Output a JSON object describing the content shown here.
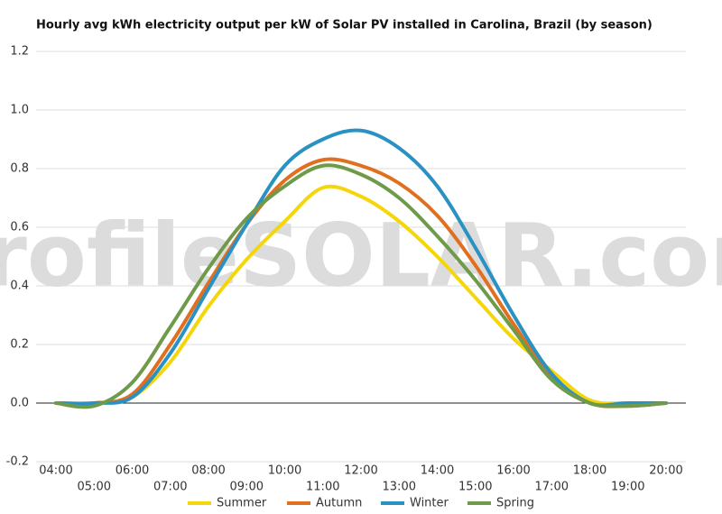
{
  "chart_data": {
    "type": "line",
    "title": "Hourly avg kWh electricity output per kW of Solar PV installed in Carolina, Brazil (by season)",
    "watermark": "profileSOLAR.com",
    "categories": [
      "04:00",
      "05:00",
      "06:00",
      "07:00",
      "08:00",
      "09:00",
      "10:00",
      "11:00",
      "12:00",
      "13:00",
      "14:00",
      "15:00",
      "16:00",
      "17:00",
      "18:00",
      "19:00",
      "20:00"
    ],
    "series": [
      {
        "name": "Summer",
        "color": "#f5d60a",
        "values": [
          0,
          0,
          0.02,
          0.14,
          0.33,
          0.49,
          0.62,
          0.735,
          0.705,
          0.62,
          0.5,
          0.36,
          0.22,
          0.11,
          0.01,
          0,
          0
        ]
      },
      {
        "name": "Autumn",
        "color": "#e07020",
        "values": [
          0,
          0,
          0.03,
          0.2,
          0.41,
          0.61,
          0.76,
          0.83,
          0.81,
          0.75,
          0.64,
          0.47,
          0.27,
          0.09,
          0,
          -0.01,
          0
        ]
      },
      {
        "name": "Winter",
        "color": "#2a92c2",
        "values": [
          0,
          0,
          0.02,
          0.17,
          0.39,
          0.61,
          0.81,
          0.9,
          0.93,
          0.87,
          0.74,
          0.53,
          0.3,
          0.1,
          0,
          0,
          0
        ]
      },
      {
        "name": "Spring",
        "color": "#6e9a4a",
        "values": [
          0,
          -0.01,
          0.07,
          0.26,
          0.46,
          0.63,
          0.74,
          0.81,
          0.78,
          0.7,
          0.57,
          0.42,
          0.25,
          0.08,
          0,
          -0.01,
          0
        ]
      }
    ],
    "ylim": [
      -0.2,
      1.2
    ],
    "yticks": [
      -0.2,
      {
        "value": 0,
        "label": "0.0"
      },
      0.2,
      0.4,
      0.6,
      0.8,
      {
        "value": 1,
        "label": "1.0"
      },
      1.2
    ],
    "grid": true,
    "legend": "bottom"
  }
}
